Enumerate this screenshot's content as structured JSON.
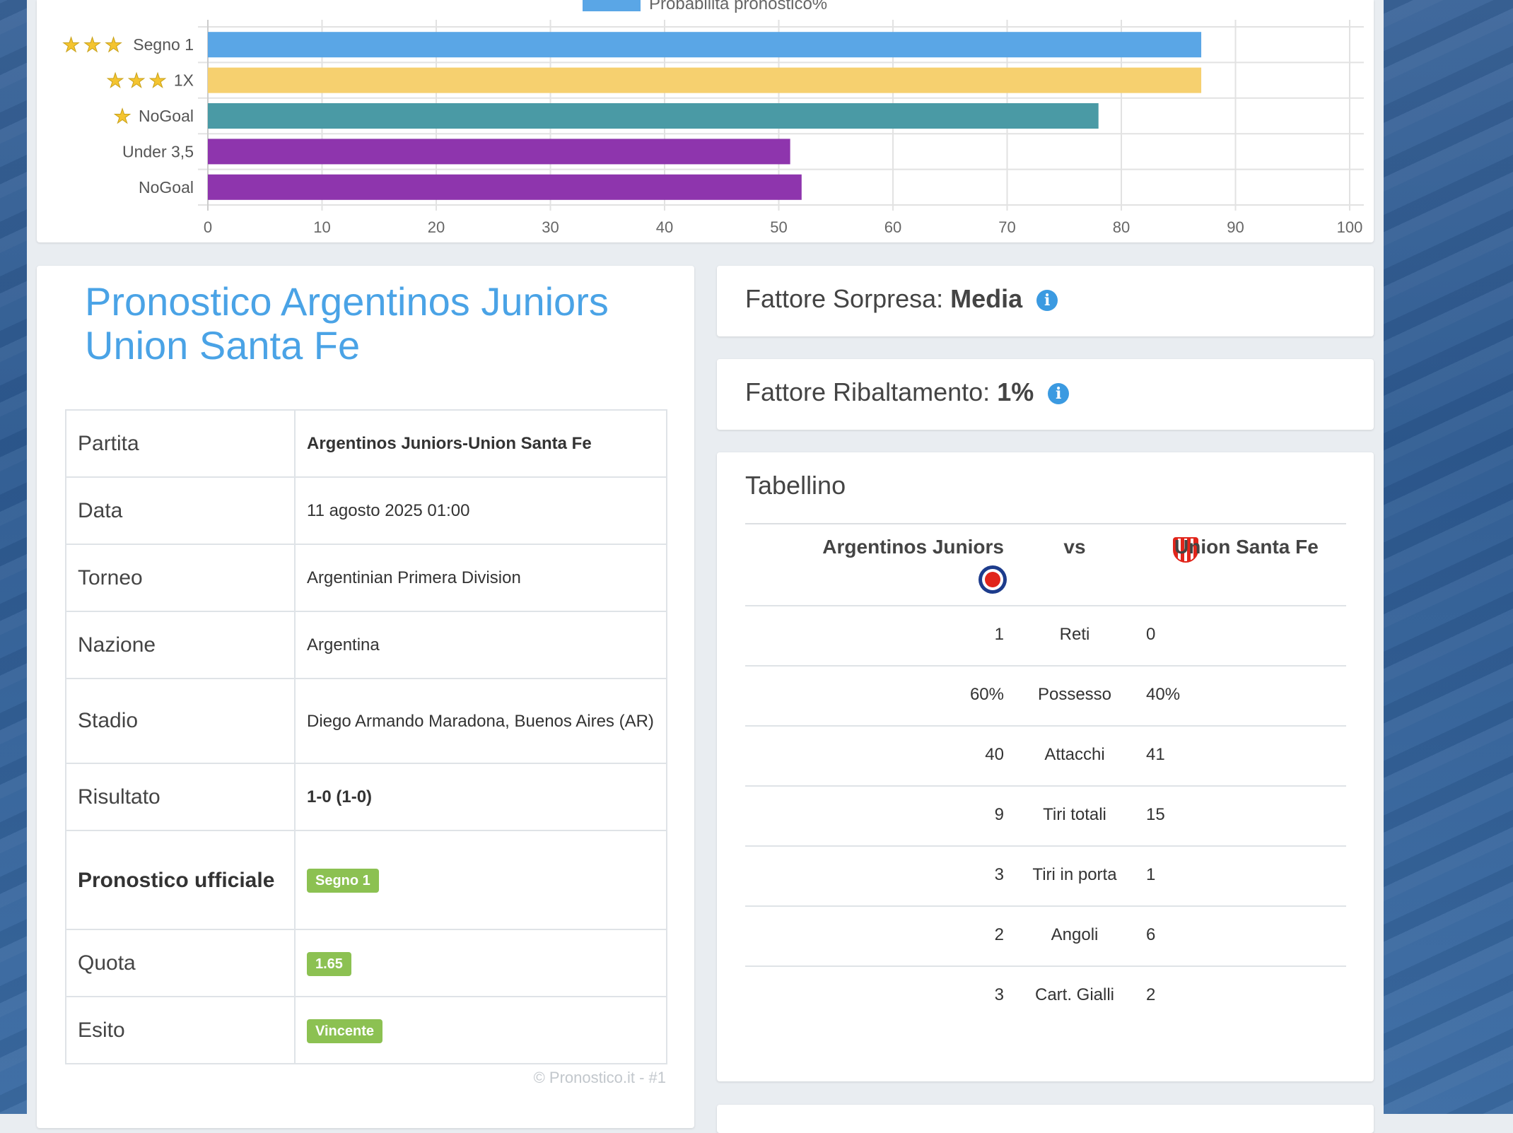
{
  "chart": {
    "legend_label": "Probabilità pronostico%",
    "legend_color": "#5aa6e6"
  },
  "chart_data": {
    "type": "bar",
    "orientation": "horizontal",
    "categories": [
      "Segno 1",
      "1X",
      "NoGoal",
      "Under 3,5",
      "NoGoal"
    ],
    "stars": [
      3,
      3,
      1,
      0,
      0
    ],
    "values": [
      87,
      87,
      78,
      51,
      52
    ],
    "colors": [
      "#5aa6e6",
      "#f6d06f",
      "#4a9aa5",
      "#8e35ad",
      "#8e35ad"
    ],
    "series": [
      {
        "name": "Probabilità pronostico%",
        "values": [
          87,
          87,
          78,
          51,
          52
        ]
      }
    ],
    "xlim": [
      0,
      100
    ],
    "xticks": [
      0,
      10,
      20,
      30,
      40,
      50,
      60,
      70,
      80,
      90,
      100
    ],
    "grid": true,
    "legend_position": "top"
  },
  "match": {
    "title_line1": "Pronostico Argentinos Juniors",
    "title_line2": "Union Santa Fe",
    "rows": [
      {
        "label": "Partita",
        "value": "Argentinos Juniors-Union Santa Fe"
      },
      {
        "label": "Data",
        "value": "11 agosto 2025 01:00"
      },
      {
        "label": "Torneo",
        "value": "Argentinian Primera Division"
      },
      {
        "label": "Nazione",
        "value": "Argentina"
      },
      {
        "label": "Stadio",
        "value": "Diego Armando Maradona, Buenos Aires (AR)"
      },
      {
        "label": "Risultato",
        "value": "1-0 (1-0)"
      },
      {
        "label": "Pronostico ufficiale",
        "value": "Segno 1"
      },
      {
        "label": "Quota",
        "value": "1.65"
      },
      {
        "label": "Esito",
        "value": "Vincente"
      }
    ],
    "copyright": "© Pronostico.it - #1"
  },
  "factors": {
    "sorpresa_label": "Fattore Sorpresa:",
    "sorpresa_value": "Media",
    "ribaltamento_label": "Fattore Ribaltamento:",
    "ribaltamento_value": "1%"
  },
  "tabellino": {
    "title": "Tabellino",
    "home": "Argentinos Juniors",
    "vs": "vs",
    "away": "Union Santa Fe",
    "stats": [
      {
        "label": "Reti",
        "home": "1",
        "away": "0"
      },
      {
        "label": "Possesso",
        "home": "60%",
        "away": "40%"
      },
      {
        "label": "Attacchi",
        "home": "40",
        "away": "41"
      },
      {
        "label": "Tiri totali",
        "home": "9",
        "away": "15"
      },
      {
        "label": "Tiri in porta",
        "home": "3",
        "away": "1"
      },
      {
        "label": "Angoli",
        "home": "2",
        "away": "6"
      },
      {
        "label": "Cart. Gialli",
        "home": "3",
        "away": "2"
      }
    ]
  }
}
